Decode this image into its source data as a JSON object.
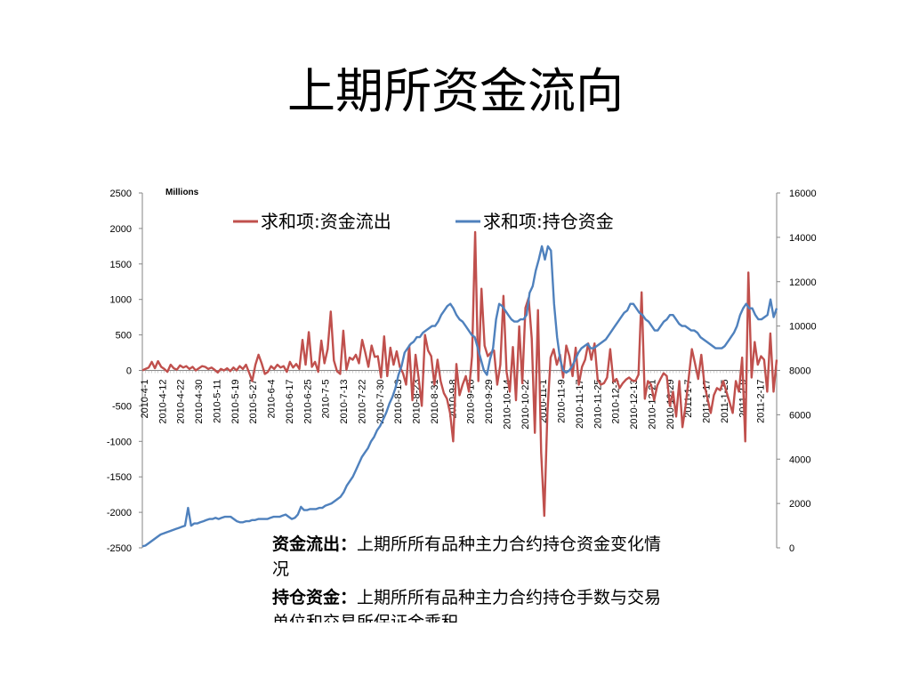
{
  "slide": {
    "title": "上期所资金流向"
  },
  "chart_data": {
    "type": "line",
    "unit_label": "Millions",
    "y_left": {
      "min": -2500,
      "max": 2500,
      "ticks": [
        2500,
        2000,
        1500,
        1000,
        500,
        0,
        -500,
        -1000,
        -1500,
        -2000,
        -2500
      ]
    },
    "y_right": {
      "min": 0,
      "max": 16000,
      "ticks": [
        16000,
        14000,
        12000,
        10000,
        8000,
        6000,
        4000,
        2000,
        0
      ]
    },
    "x_tick_labels": [
      "2010-4-1",
      "2010-4-12",
      "2010-4-22",
      "2010-4-30",
      "2010-5-11",
      "2010-5-19",
      "2010-5-27",
      "2010-6-4",
      "2010-6-17",
      "2010-6-25",
      "2010-7-5",
      "2010-7-13",
      "2010-7-22",
      "2010-7-30",
      "2010-8-13",
      "2010-8-23",
      "2010-8-31",
      "2010-9-8",
      "2010-9-16",
      "2010-9-29",
      "2010-10-14",
      "2010-10-22",
      "2010-11-1",
      "2010-11-9",
      "2010-11-17",
      "2010-11-25",
      "2010-12-3",
      "2010-12-13",
      "2010-12-21",
      "2010-12-29",
      "2011-1-7",
      "2011-1-17",
      "2011-1-25",
      "2011-2-9",
      "2011-2-17"
    ],
    "legend": [
      "求和项:资金流出",
      "求和项:持仓资金"
    ],
    "series": [
      {
        "name": "求和项:资金流出",
        "axis": "left",
        "color": "#c0504d",
        "values": [
          0,
          20,
          40,
          120,
          30,
          130,
          50,
          20,
          -20,
          80,
          30,
          10,
          70,
          40,
          60,
          20,
          50,
          0,
          30,
          60,
          50,
          20,
          40,
          10,
          -30,
          20,
          0,
          30,
          -10,
          40,
          0,
          60,
          20,
          80,
          -30,
          -150,
          80,
          220,
          100,
          -50,
          -20,
          60,
          20,
          80,
          40,
          60,
          -20,
          120,
          40,
          90,
          20,
          430,
          80,
          540,
          50,
          120,
          -20,
          420,
          100,
          300,
          830,
          140,
          -10,
          -50,
          560,
          10,
          180,
          150,
          220,
          100,
          430,
          250,
          50,
          350,
          190,
          200,
          -100,
          480,
          -80,
          320,
          80,
          270,
          50,
          -40,
          -200,
          350,
          -420,
          220,
          -110,
          -500,
          500,
          280,
          200,
          -200,
          150,
          -150,
          -320,
          -400,
          -600,
          -1000,
          90,
          -350,
          -200,
          -80,
          -300,
          200,
          1950,
          -150,
          1150,
          350,
          200,
          250,
          280,
          -200,
          80,
          1050,
          -20,
          -300,
          330,
          -420,
          620,
          -180,
          880,
          1020,
          450,
          -880,
          850,
          -1160,
          -2050,
          -600,
          180,
          300,
          80,
          220,
          -100,
          350,
          200,
          -80,
          320,
          -200,
          50,
          150,
          380,
          150,
          380,
          -130,
          -200,
          -180,
          -100,
          300,
          -160,
          -120,
          -250,
          -180,
          -130,
          -100,
          -140,
          -150,
          -60,
          1100,
          -400,
          -150,
          -200,
          -420,
          -210,
          -120,
          -40,
          -80,
          -500,
          -300,
          -650,
          -150,
          -800,
          -500,
          -100,
          300,
          100,
          -120,
          220,
          -200,
          -400,
          -600,
          -350,
          -250,
          -280,
          -150,
          -300,
          -450,
          -600,
          -150,
          -300,
          180,
          -1000,
          1380,
          -100,
          400,
          80,
          200,
          150,
          -300,
          520,
          -300,
          150
        ]
      },
      {
        "name": "求和项:持仓资金",
        "axis": "right",
        "color": "#4f81bd",
        "values": [
          70,
          100,
          200,
          300,
          400,
          500,
          600,
          650,
          700,
          750,
          800,
          850,
          900,
          950,
          1000,
          1800,
          1000,
          1100,
          1100,
          1150,
          1200,
          1250,
          1300,
          1300,
          1350,
          1300,
          1350,
          1400,
          1400,
          1400,
          1300,
          1200,
          1150,
          1150,
          1200,
          1200,
          1250,
          1250,
          1300,
          1300,
          1300,
          1300,
          1350,
          1400,
          1400,
          1400,
          1450,
          1500,
          1400,
          1300,
          1350,
          1500,
          1850,
          1700,
          1700,
          1750,
          1750,
          1750,
          1800,
          1800,
          1900,
          1950,
          2000,
          2100,
          2200,
          2300,
          2500,
          2800,
          3000,
          3200,
          3500,
          3800,
          4100,
          4300,
          4500,
          4800,
          5000,
          5300,
          5500,
          5800,
          6100,
          6500,
          6800,
          7200,
          7800,
          8200,
          8800,
          9000,
          9200,
          9300,
          9500,
          9500,
          9700,
          9800,
          9900,
          10000,
          10000,
          10200,
          10500,
          10700,
          10900,
          11000,
          10800,
          10500,
          10300,
          10200,
          10000,
          9800,
          9600,
          9500,
          9000,
          8500,
          8000,
          7800,
          8500,
          9000,
          10300,
          11000,
          10900,
          10700,
          10500,
          10300,
          10200,
          10200,
          10300,
          10300,
          10500,
          11500,
          11800,
          12500,
          13000,
          13600,
          13000,
          13600,
          13400,
          11000,
          9500,
          8500,
          8000,
          7900,
          8000,
          8200,
          8500,
          8800,
          9000,
          9100,
          9200,
          9000,
          9000,
          9100,
          9200,
          9300,
          9400,
          9600,
          9800,
          10000,
          10200,
          10400,
          10600,
          10700,
          11000,
          11000,
          10800,
          10600,
          10500,
          10300,
          10200,
          10000,
          9800,
          9800,
          10000,
          10200,
          10300,
          10500,
          10500,
          10300,
          10100,
          10000,
          10000,
          9900,
          9800,
          9800,
          9700,
          9500,
          9400,
          9300,
          9200,
          9100,
          9000,
          9000,
          9000,
          9100,
          9300,
          9500,
          9700,
          10000,
          10500,
          10800,
          11000,
          10800,
          10800,
          10500,
          10300,
          10300,
          10400,
          10500,
          11200,
          10400,
          10800
        ]
      }
    ]
  },
  "description": [
    {
      "label": "资金流出：",
      "text": "上期所所有品种主力合约持仓资金变化情况"
    },
    {
      "label": "持仓资金：",
      "text": "上期所所有品种主力合约持仓手数与交易单位和交易所保证金乘积"
    }
  ]
}
